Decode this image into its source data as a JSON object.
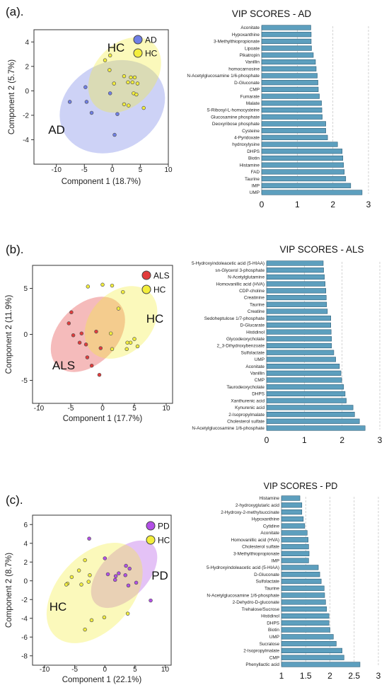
{
  "chart_data": [
    {
      "type": "scatter",
      "panel_label": "(a).",
      "xlabel": "Component 1 (18.7%)",
      "ylabel": "Component 2 (5.7%)",
      "xlim": [
        -14,
        10
      ],
      "ylim": [
        -6,
        5
      ],
      "xticks": [
        "-10",
        "-5",
        "0",
        "5",
        "10"
      ],
      "yticks": [
        "-4",
        "-2",
        "0",
        "2",
        "4"
      ],
      "legend": [
        "AD",
        "HC"
      ],
      "colors": {
        "AD": "#6f7fe6",
        "HC": "#f3ee3c"
      },
      "group_labels": [
        "HC",
        "AD"
      ],
      "series": [
        {
          "name": "AD",
          "points": [
            [
              -4.8,
              0.3
            ],
            [
              -7.6,
              -0.9
            ],
            [
              -4.6,
              -0.9
            ],
            [
              -3.7,
              -1.8
            ],
            [
              0.9,
              -1.9
            ],
            [
              0.4,
              -3.6
            ],
            [
              -0.4,
              -0.2
            ]
          ]
        },
        {
          "name": "HC",
          "points": [
            [
              -1.3,
              2.5
            ],
            [
              -0.5,
              1.7
            ],
            [
              -0.4,
              2.9
            ],
            [
              0.3,
              0.6
            ],
            [
              2.1,
              1.2
            ],
            [
              2.8,
              0.7
            ],
            [
              3.3,
              1.1
            ],
            [
              3.6,
              0.7
            ],
            [
              4.0,
              1.1
            ],
            [
              4.5,
              0.6
            ],
            [
              2.1,
              -1.1
            ],
            [
              2.9,
              -1.2
            ],
            [
              3.8,
              -0.2
            ],
            [
              4.3,
              -0.3
            ],
            [
              5.6,
              -1.4
            ]
          ]
        }
      ]
    },
    {
      "type": "bar",
      "orientation": "horizontal",
      "title": "VIP SCORES - AD",
      "xlim": [
        0,
        3
      ],
      "xticks": [
        "0",
        "1",
        "2",
        "3"
      ],
      "categories": [
        "Aconitate",
        "Hypoxanthine",
        "3-Methylthiopropionate",
        "Lipoate",
        "Pikatropin",
        "Vanillin",
        "homocarnosine",
        "N-Acetylglucosamine 1/6-phosphate",
        "D-Gluconate",
        "CMP",
        "Fumarate",
        "Malate",
        "S-Ribosyl-L-homocysteine",
        "Glucosamine phosphate",
        "Deoxyribose phosphate",
        "Cysteine",
        "4-Pyridoxate",
        "hydroxylysine",
        "DHPS",
        "Biotin",
        "Histamine",
        "FAD",
        "Taurine",
        "IMP",
        "UMP"
      ],
      "values": [
        1.38,
        1.39,
        1.39,
        1.4,
        1.45,
        1.51,
        1.53,
        1.56,
        1.58,
        1.59,
        1.62,
        1.68,
        1.69,
        1.7,
        1.8,
        1.8,
        1.85,
        2.13,
        2.26,
        2.28,
        2.3,
        2.32,
        2.36,
        2.5,
        2.82
      ]
    },
    {
      "type": "scatter",
      "panel_label": "(b).",
      "xlabel": "Component 1 (17.7%)",
      "ylabel": "Component 2 (11.9%)",
      "xlim": [
        -11,
        11
      ],
      "ylim": [
        -7.5,
        7.5
      ],
      "xticks": [
        "-10",
        "-5",
        "0",
        "5",
        "10"
      ],
      "yticks": [
        "-5",
        "0",
        "5"
      ],
      "legend": [
        "ALS",
        "HC"
      ],
      "colors": {
        "ALS": "#e23b3b",
        "HC": "#f3ee3c"
      },
      "group_labels": [
        "HC",
        "ALS"
      ],
      "series": [
        {
          "name": "ALS",
          "points": [
            [
              -4.9,
              2.4
            ],
            [
              -5.3,
              1.2
            ],
            [
              -3.3,
              0.1
            ],
            [
              -3.6,
              -0.9
            ],
            [
              -4.6,
              -0.1
            ],
            [
              -2.6,
              -1.1
            ],
            [
              -1.7,
              -3.4
            ],
            [
              -2.4,
              -2.5
            ],
            [
              -0.5,
              -4.4
            ],
            [
              -0.3,
              -1.5
            ],
            [
              -1.0,
              0.3
            ]
          ]
        },
        {
          "name": "HC",
          "points": [
            [
              -2.3,
              5.2
            ],
            [
              0.0,
              5.4
            ],
            [
              1.5,
              5.3
            ],
            [
              3.2,
              4.6
            ],
            [
              2.5,
              2.8
            ],
            [
              1.3,
              0.1
            ],
            [
              3.8,
              -1.6
            ],
            [
              4.4,
              -0.9
            ],
            [
              3.9,
              -0.9
            ],
            [
              5.0,
              -0.5
            ],
            [
              5.5,
              -1.3
            ],
            [
              1.5,
              -1.6
            ]
          ]
        }
      ]
    },
    {
      "type": "bar",
      "orientation": "horizontal",
      "title": "VIP SCORES - ALS",
      "xlim": [
        0,
        3
      ],
      "xticks": [
        "0",
        "1",
        "2",
        "3"
      ],
      "categories": [
        "5-Hydroxyindoleacetic acid (5-HIAA)",
        "sn-Glycerol 3-phosphate",
        "N-Acetylglutamine",
        "Homovanillic acid (HVA)",
        "CDP-choline",
        "Creatinine",
        "Taurine",
        "Creatine",
        "Sedoheptulose 1/7-phosphate",
        "D-Glucarate",
        "Histidinol",
        "Glycodeoxycholate",
        "2_3-Dihydroxybenzoate",
        "Sulfolactate",
        "UMP",
        "Aconitate",
        "Vanillin",
        "CMP",
        "Taurodeoxycholate",
        "DHPS",
        "Xanthurenic acid",
        "Kynurenic acid",
        "2-Isopropylmalate",
        "Cholesterol sulfate",
        "N-Acetylglucosamine 1/6-phosphate"
      ],
      "values": [
        1.5,
        1.51,
        1.53,
        1.55,
        1.57,
        1.58,
        1.59,
        1.61,
        1.7,
        1.7,
        1.71,
        1.72,
        1.72,
        1.78,
        1.83,
        1.93,
        1.97,
        1.99,
        2.04,
        2.08,
        2.11,
        2.29,
        2.33,
        2.46,
        2.61
      ]
    },
    {
      "type": "scatter",
      "panel_label": "(c).",
      "xlabel": "Component 1 (22.1%)",
      "ylabel": "Component 2 (8.7%)",
      "xlim": [
        -12,
        11
      ],
      "ylim": [
        -9,
        7
      ],
      "xticks": [
        "-10",
        "-5",
        "0",
        "5",
        "10"
      ],
      "yticks": [
        "-8",
        "-6",
        "-4",
        "-2",
        "0",
        "2",
        "4",
        "6"
      ],
      "legend": [
        "PD",
        "HC"
      ],
      "colors": {
        "PD": "#b24fe6",
        "HC": "#f3ee3c"
      },
      "group_labels": [
        "PD",
        "HC"
      ],
      "series": [
        {
          "name": "PD",
          "points": [
            [
              -2.6,
              4.5
            ],
            [
              0.0,
              2.4
            ],
            [
              3.5,
              1.6
            ],
            [
              4.1,
              1.3
            ],
            [
              0.5,
              0.7
            ],
            [
              1.8,
              0.5
            ],
            [
              1.7,
              0.1
            ],
            [
              2.3,
              0.8
            ],
            [
              3.4,
              0.6
            ],
            [
              5.2,
              -0.2
            ],
            [
              3.9,
              -0.5
            ],
            [
              7.6,
              -2.1
            ]
          ]
        },
        {
          "name": "HC",
          "points": [
            [
              -3.3,
              2.2
            ],
            [
              -4.3,
              1.1
            ],
            [
              -5.5,
              0.4
            ],
            [
              -3.9,
              -0.4
            ],
            [
              -6.2,
              -0.3
            ],
            [
              -6.4,
              -0.4
            ],
            [
              -2.5,
              0.6
            ],
            [
              -2.7,
              -0.1
            ],
            [
              -2.2,
              -4.2
            ],
            [
              -0.1,
              -3.9
            ],
            [
              -3.3,
              -5.2
            ],
            [
              3.8,
              -3.5
            ]
          ]
        }
      ]
    },
    {
      "type": "bar",
      "orientation": "horizontal",
      "title": "VIP SCORES - PD",
      "xlim": [
        1,
        3
      ],
      "xticks": [
        "1",
        "1.5",
        "2",
        "2.5",
        "3"
      ],
      "categories": [
        "Histamine",
        "2-hydroxyglutaric acid",
        "2-Hydroxy-2-methylsuccinate",
        "Hypoxanthine",
        "Cytidine",
        "Aconitate",
        "Homovanillic acid (HVA)",
        "Cholesterol sulfate",
        "3-Methylthiopropionate",
        "IMP",
        "5-Hydroxyindoleacetic acid (5-HIAA)",
        "D-Gluconate",
        "Sulfolactate",
        "Taurine",
        "N-Acetylglucosamine 1/6-phosphate",
        "2-Dehydro-D-gluconate",
        "Trehalose/Sucrose",
        "Histidinol",
        "DHPS",
        "Biotin",
        "UMP",
        "Sucralose",
        "2-Isopropylmalate",
        "CMP",
        "Phenyllactic acid"
      ],
      "values": [
        1.38,
        1.42,
        1.42,
        1.45,
        1.48,
        1.53,
        1.55,
        1.56,
        1.57,
        1.56,
        1.76,
        1.79,
        1.82,
        1.88,
        1.89,
        1.91,
        1.93,
        1.98,
        1.98,
        2.0,
        2.07,
        2.13,
        2.25,
        2.29,
        2.62
      ]
    }
  ]
}
